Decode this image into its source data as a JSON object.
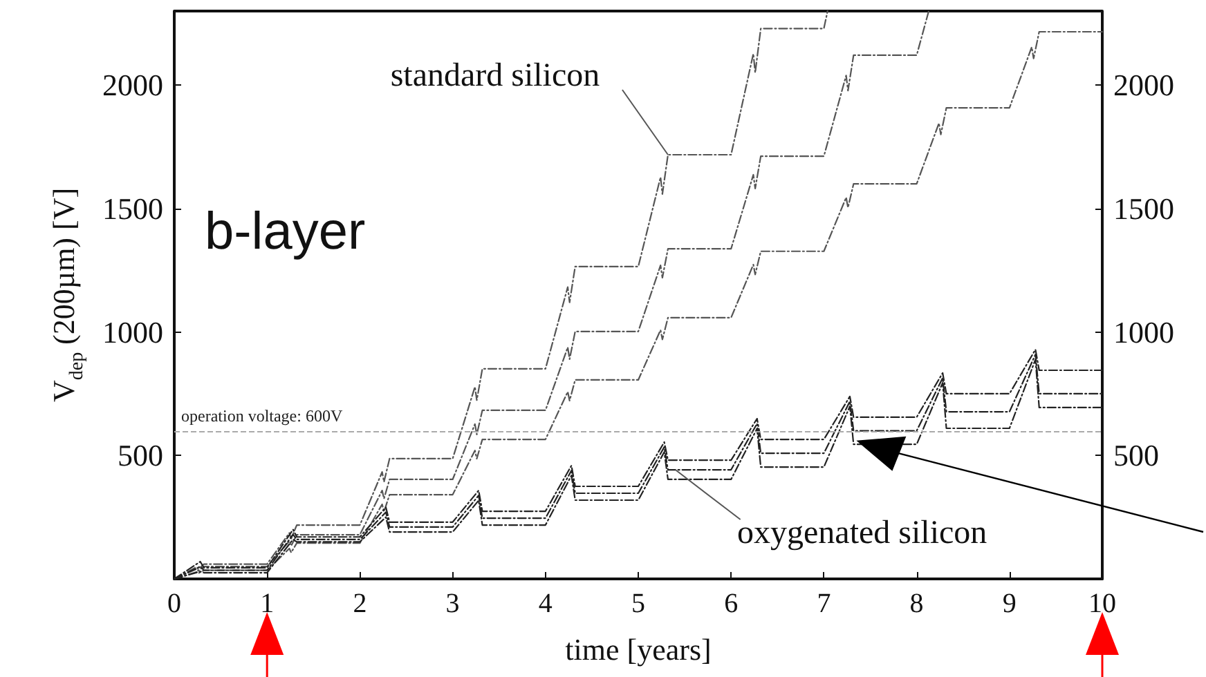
{
  "chart_data": {
    "type": "line",
    "xlabel": "time [years]",
    "ylabel": "V$_{dep}$ (200µm) [V]",
    "xlim": [
      0,
      10
    ],
    "xticks": [
      0,
      1,
      2,
      3,
      4,
      5,
      6,
      7,
      8,
      9,
      10
    ],
    "ylim": [
      0,
      2300
    ],
    "yticks": [
      500,
      1000,
      1500,
      2000
    ],
    "y2lim": [
      0,
      2300
    ],
    "y2ticks": [
      500,
      1000,
      1500,
      2000
    ],
    "marker": "none",
    "line_style": "dashed",
    "ref_lines": [
      {
        "axis": "y",
        "value": 600,
        "label": "operation voltage: 600V",
        "color": "#aaaaaa",
        "line_style": "dashed"
      }
    ],
    "annotations": [
      "b-layer",
      {
        "text": "standard silicon",
        "x": 5.32,
        "y": 1718
      },
      {
        "text": "oxygenated silicon",
        "x": 5.4,
        "y": 442
      }
    ],
    "series": [
      {
        "color": "#555555",
        "x": [
          0,
          0.24,
          0.26,
          0.32,
          1,
          1.24,
          1.26,
          1.32,
          2,
          2.24,
          2.26,
          2.32,
          3,
          3.24,
          3.26,
          3.32,
          4,
          4.24,
          4.26,
          4.32,
          5,
          5.24,
          5.26,
          5.32,
          6,
          6.24,
          6.26,
          6.32,
          7,
          7.04
        ],
        "values": [
          0,
          48,
          39,
          60,
          60,
          186,
          163,
          218,
          218,
          433,
          393,
          487,
          487,
          778,
          724,
          851,
          851,
          1182,
          1120,
          1265,
          1265,
          1627,
          1559,
          1718,
          1718,
          2127,
          2050,
          2229,
          2229,
          2300
        ]
      },
      {
        "color": "#555555",
        "x": [
          0,
          0.24,
          0.26,
          0.32,
          1,
          1.24,
          1.26,
          1.32,
          2,
          2.24,
          2.26,
          2.32,
          3,
          3.24,
          3.26,
          3.32,
          4,
          4.24,
          4.26,
          4.32,
          5,
          5.24,
          5.26,
          5.32,
          6,
          6.24,
          6.26,
          6.32,
          7,
          7.24,
          7.26,
          7.32,
          8,
          8.13
        ],
        "values": [
          0,
          40,
          33,
          50,
          50,
          153,
          134,
          179,
          179,
          358,
          325,
          403,
          403,
          627,
          585,
          683,
          683,
          938,
          890,
          1002,
          1002,
          1270,
          1220,
          1337,
          1337,
          1637,
          1581,
          1712,
          1712,
          2039,
          1978,
          2121,
          2121,
          2300
        ]
      },
      {
        "color": "#555555",
        "x": [
          0,
          0.24,
          0.26,
          0.32,
          1,
          1.24,
          1.26,
          1.32,
          2,
          2.24,
          2.26,
          2.32,
          3,
          3.24,
          3.26,
          3.32,
          4,
          4.24,
          4.26,
          4.32,
          5,
          5.24,
          5.26,
          5.32,
          6,
          6.24,
          6.26,
          6.32,
          7,
          7.24,
          7.26,
          7.32,
          8,
          8.24,
          8.26,
          8.32,
          9,
          9.24,
          9.26,
          9.32,
          10
        ],
        "values": [
          0,
          28,
          23,
          35,
          35,
          123,
          107,
          145,
          145,
          302,
          272,
          341,
          341,
          520,
          487,
          565,
          565,
          758,
          722,
          806,
          806,
          1008,
          970,
          1058,
          1058,
          1273,
          1233,
          1327,
          1327,
          1545,
          1504,
          1600,
          1600,
          1846,
          1800,
          1908,
          1908,
          2154,
          2108,
          2216,
          2216
        ]
      },
      {
        "color": "#222222",
        "x": [
          0,
          0.28,
          0.32,
          1,
          1.28,
          1.32,
          2,
          2.28,
          2.32,
          3,
          3.28,
          3.32,
          4,
          4.28,
          4.32,
          5,
          5.28,
          5.32,
          6,
          6.28,
          6.32,
          7,
          7.28,
          7.32,
          8,
          8.28,
          8.32,
          9,
          9.28,
          9.32,
          10
        ],
        "values": [
          0,
          70,
          45,
          45,
          200,
          170,
          170,
          290,
          230,
          230,
          358,
          274,
          274,
          459,
          375,
          375,
          554,
          481,
          481,
          649,
          565,
          565,
          739,
          655,
          655,
          834,
          750,
          750,
          929,
          845,
          845
        ]
      },
      {
        "color": "#222222",
        "x": [
          0,
          0.28,
          0.32,
          1,
          1.28,
          1.32,
          2,
          2.28,
          2.32,
          3,
          3.28,
          3.32,
          4,
          4.28,
          4.32,
          5,
          5.28,
          5.32,
          6,
          6.28,
          6.32,
          7,
          7.28,
          7.32,
          8,
          8.28,
          8.32,
          9,
          9.28,
          9.32,
          10
        ],
        "values": [
          0,
          50,
          35,
          35,
          180,
          160,
          160,
          270,
          210,
          210,
          338,
          246,
          246,
          439,
          347,
          347,
          534,
          442,
          442,
          629,
          509,
          509,
          719,
          600,
          600,
          814,
          677,
          677,
          909,
          750,
          750
        ]
      },
      {
        "color": "#222222",
        "x": [
          0,
          0.28,
          0.32,
          1,
          1.28,
          1.32,
          2,
          2.28,
          2.32,
          3,
          3.28,
          3.32,
          4,
          4.28,
          4.32,
          5,
          5.28,
          5.32,
          6,
          6.28,
          6.32,
          7,
          7.28,
          7.32,
          8,
          8.28,
          8.32,
          9,
          9.28,
          9.32,
          10
        ],
        "values": [
          0,
          30,
          25,
          25,
          160,
          150,
          150,
          250,
          190,
          190,
          318,
          218,
          218,
          419,
          319,
          319,
          514,
          403,
          403,
          609,
          453,
          453,
          699,
          545,
          545,
          794,
          610,
          610,
          889,
          694,
          694
        ]
      }
    ]
  }
}
